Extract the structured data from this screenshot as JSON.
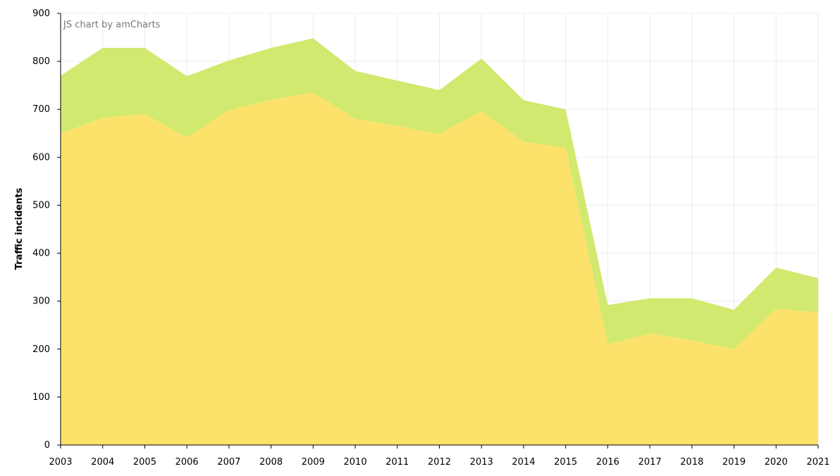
{
  "credit": "JS chart by amCharts",
  "colors": {
    "series_lower": "#FCE26A",
    "series_upper": "#D1E96E",
    "grid": "#ebebeb",
    "axis": "#000000"
  },
  "chart_data": {
    "type": "area",
    "stacked": true,
    "title": "",
    "xlabel": "",
    "ylabel": "Traffic incidents",
    "ylim": [
      0,
      900
    ],
    "yticks": [
      0,
      100,
      200,
      300,
      400,
      500,
      600,
      700,
      800,
      900
    ],
    "grid": true,
    "legend": "none",
    "categories": [
      "2003",
      "2004",
      "2005",
      "2006",
      "2007",
      "2008",
      "2009",
      "2010",
      "2011",
      "2012",
      "2013",
      "2014",
      "2015",
      "2016",
      "2017",
      "2018",
      "2019",
      "2020",
      "2021"
    ],
    "series": [
      {
        "values": [
          650,
          682,
          690,
          641,
          698,
          720,
          735,
          680,
          665,
          648,
          696,
          632,
          620,
          210,
          232,
          218,
          200,
          284,
          276
        ]
      },
      {
        "values": [
          120,
          146,
          138,
          128,
          104,
          108,
          113,
          100,
          95,
          92,
          110,
          87,
          80,
          82,
          74,
          88,
          82,
          86,
          72
        ]
      }
    ]
  }
}
